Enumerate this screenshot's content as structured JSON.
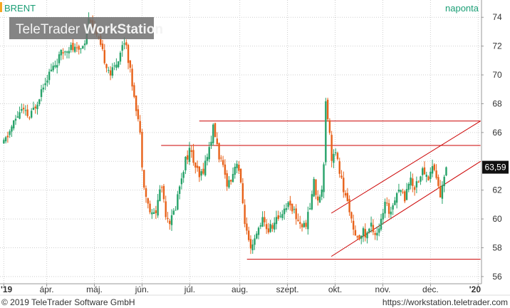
{
  "header": {
    "instrument": "BRENT",
    "period": "naponta",
    "watermark_prefix": "TeleTrader ",
    "watermark_brand": "WorkStation"
  },
  "footer": {
    "copyright": "© 2019 TeleTrader Software GmbH",
    "url": "https://workstation.teletrader.com"
  },
  "colors": {
    "up": "#26a269",
    "down": "#e8621a",
    "trendline": "#cc0000",
    "accent": "#f5a623",
    "period_label": "#1a9e75",
    "watermark_bg": "#6e6e6e",
    "grid": "#cfcfcf"
  },
  "chart_data": {
    "type": "candlestick",
    "x_ticks": [
      "'19",
      "ápr.",
      "máj.",
      "jún.",
      "júl.",
      "aug.",
      "szept.",
      "okt.",
      "nov.",
      "dec.",
      "'20"
    ],
    "y_ticks": [
      56,
      58,
      60,
      62,
      64,
      66,
      68,
      70,
      72,
      74
    ],
    "y_tick_labels": [
      "56",
      "58",
      "60",
      "62",
      "",
      "66",
      "68",
      "70",
      "72",
      "74"
    ],
    "ylim": [
      55.5,
      75.2
    ],
    "last_price": 63.59,
    "last_price_label": "63,59",
    "grid": true,
    "x_months": {
      "'19": 3.0,
      "ápr.": 3.9,
      "máj.": 4.9,
      "jún.": 5.9,
      "júl.": 6.9,
      "aug.": 7.95,
      "szept.": 8.95,
      "okt.": 9.95,
      "nov.": 10.95,
      "dec.": 11.95,
      "'20": 12.95
    },
    "series_path": [
      [
        3.0,
        65.2
      ],
      [
        3.2,
        66.6
      ],
      [
        3.35,
        67.6
      ],
      [
        3.55,
        67.0
      ],
      [
        3.7,
        68.2
      ],
      [
        3.85,
        69.6
      ],
      [
        4.05,
        70.6
      ],
      [
        4.2,
        71.4
      ],
      [
        4.35,
        72.0
      ],
      [
        4.55,
        71.6
      ],
      [
        4.7,
        72.4
      ],
      [
        4.8,
        74.2
      ],
      [
        4.95,
        72.6
      ],
      [
        5.1,
        71.2
      ],
      [
        5.25,
        70.0
      ],
      [
        5.4,
        71.2
      ],
      [
        5.55,
        72.6
      ],
      [
        5.65,
        70.2
      ],
      [
        5.75,
        68.4
      ],
      [
        5.85,
        66.2
      ],
      [
        5.92,
        63.0
      ],
      [
        6.0,
        61.2
      ],
      [
        6.1,
        60.2
      ],
      [
        6.2,
        60.6
      ],
      [
        6.3,
        62.6
      ],
      [
        6.4,
        60.4
      ],
      [
        6.5,
        59.8
      ],
      [
        6.6,
        60.8
      ],
      [
        6.7,
        62.6
      ],
      [
        6.8,
        64.0
      ],
      [
        6.9,
        64.8
      ],
      [
        7.0,
        63.8
      ],
      [
        7.1,
        62.8
      ],
      [
        7.2,
        63.6
      ],
      [
        7.3,
        64.8
      ],
      [
        7.4,
        66.4
      ],
      [
        7.5,
        64.6
      ],
      [
        7.6,
        63.4
      ],
      [
        7.7,
        62.4
      ],
      [
        7.8,
        63.2
      ],
      [
        7.9,
        64.2
      ],
      [
        7.98,
        62.0
      ],
      [
        8.08,
        59.2
      ],
      [
        8.18,
        57.6
      ],
      [
        8.28,
        58.6
      ],
      [
        8.4,
        60.0
      ],
      [
        8.55,
        59.2
      ],
      [
        8.7,
        59.8
      ],
      [
        8.85,
        60.6
      ],
      [
        9.0,
        61.2
      ],
      [
        9.15,
        60.0
      ],
      [
        9.3,
        59.4
      ],
      [
        9.4,
        60.4
      ],
      [
        9.5,
        62.6
      ],
      [
        9.55,
        61.8
      ],
      [
        9.62,
        61.2
      ],
      [
        9.7,
        62.8
      ],
      [
        9.75,
        68.4
      ],
      [
        9.82,
        66.4
      ],
      [
        9.88,
        64.2
      ],
      [
        9.95,
        64.6
      ],
      [
        10.05,
        63.2
      ],
      [
        10.15,
        61.6
      ],
      [
        10.25,
        60.8
      ],
      [
        10.33,
        59.0
      ],
      [
        10.42,
        58.4
      ],
      [
        10.5,
        59.2
      ],
      [
        10.6,
        58.8
      ],
      [
        10.7,
        59.6
      ],
      [
        10.8,
        59.0
      ],
      [
        10.9,
        59.6
      ],
      [
        11.0,
        61.0
      ],
      [
        11.1,
        60.4
      ],
      [
        11.2,
        61.6
      ],
      [
        11.3,
        62.2
      ],
      [
        11.4,
        61.4
      ],
      [
        11.5,
        62.8
      ],
      [
        11.6,
        62.2
      ],
      [
        11.7,
        62.8
      ],
      [
        11.8,
        63.4
      ],
      [
        11.9,
        62.8
      ],
      [
        12.0,
        63.8
      ],
      [
        12.08,
        62.8
      ],
      [
        12.15,
        61.6
      ],
      [
        12.22,
        62.4
      ],
      [
        12.28,
        63.59
      ]
    ],
    "horizontal_lines": [
      {
        "y": 66.8,
        "from": 7.1,
        "to": 13.0
      },
      {
        "y": 65.1,
        "from": 6.3,
        "to": 13.0
      },
      {
        "y": 57.2,
        "from": 8.1,
        "to": 13.0
      }
    ],
    "trend_lines": [
      {
        "from": [
          9.87,
          57.4
        ],
        "to": [
          13.0,
          64.0
        ]
      },
      {
        "from": [
          9.87,
          60.4
        ],
        "to": [
          13.0,
          66.8
        ]
      }
    ]
  }
}
